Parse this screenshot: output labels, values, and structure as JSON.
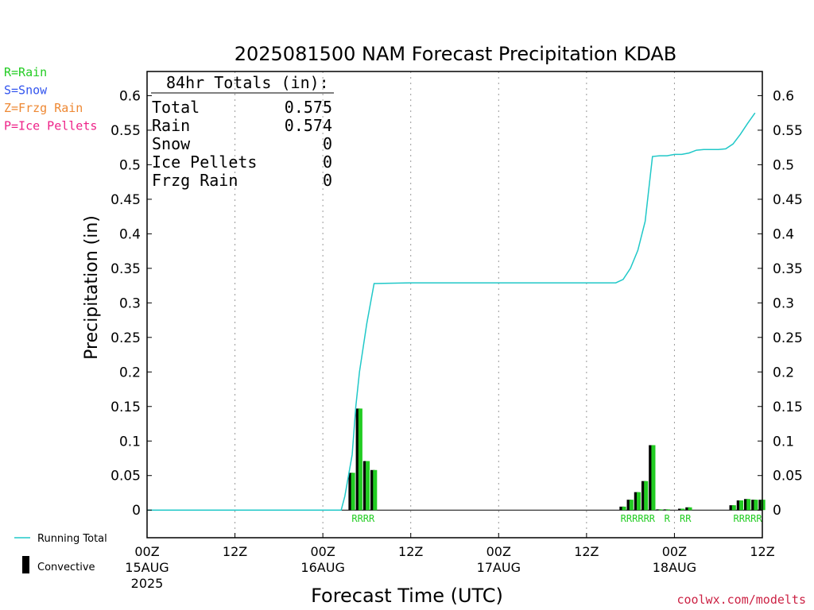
{
  "chart_data": {
    "type": "bar",
    "title": "2025081500 NAM Forecast Precipitation KDAB",
    "xlabel": "Forecast Time (UTC)",
    "ylabel": "Precipitation  (in)",
    "ylim": [
      -0.04,
      0.635
    ],
    "xlim_hours": [
      0,
      84
    ],
    "yticks": [
      0,
      0.05,
      0.1,
      0.15,
      0.2,
      0.25,
      0.3,
      0.35,
      0.4,
      0.45,
      0.5,
      0.55,
      0.6
    ],
    "ytick_labels": [
      "0",
      "0.05",
      "0.1",
      "0.15",
      "0.2",
      "0.25",
      "0.3",
      "0.35",
      "0.4",
      "0.45",
      "0.5",
      "0.55",
      "0.6"
    ],
    "xticks": [
      {
        "hour": 0,
        "label": "00Z",
        "sub": "15AUG",
        "sub2": "2025"
      },
      {
        "hour": 12,
        "label": "12Z",
        "sub": "",
        "sub2": ""
      },
      {
        "hour": 24,
        "label": "00Z",
        "sub": "16AUG",
        "sub2": ""
      },
      {
        "hour": 36,
        "label": "12Z",
        "sub": "",
        "sub2": ""
      },
      {
        "hour": 48,
        "label": "00Z",
        "sub": "17AUG",
        "sub2": ""
      },
      {
        "hour": 60,
        "label": "12Z",
        "sub": "",
        "sub2": ""
      },
      {
        "hour": 72,
        "label": "00Z",
        "sub": "18AUG",
        "sub2": ""
      },
      {
        "hour": 84,
        "label": "12Z",
        "sub": "",
        "sub2": ""
      }
    ],
    "grid": "vertical-dotted",
    "bars": [
      {
        "hour": 28,
        "value": 0.054,
        "type": "R"
      },
      {
        "hour": 29,
        "value": 0.147,
        "type": "R"
      },
      {
        "hour": 30,
        "value": 0.071,
        "type": "R"
      },
      {
        "hour": 31,
        "value": 0.058,
        "type": "R"
      },
      {
        "hour": 65,
        "value": 0.005,
        "type": "R"
      },
      {
        "hour": 66,
        "value": 0.015,
        "type": "R"
      },
      {
        "hour": 67,
        "value": 0.026,
        "type": "R"
      },
      {
        "hour": 68,
        "value": 0.042,
        "type": "R"
      },
      {
        "hour": 69,
        "value": 0.094,
        "type": "R"
      },
      {
        "hour": 70,
        "value": 0.001,
        "type": ""
      },
      {
        "hour": 71,
        "value": 0.001,
        "type": "R"
      },
      {
        "hour": 73,
        "value": 0.002,
        "type": "R"
      },
      {
        "hour": 74,
        "value": 0.004,
        "type": "R"
      },
      {
        "hour": 80,
        "value": 0.007,
        "type": "R"
      },
      {
        "hour": 81,
        "value": 0.014,
        "type": "R"
      },
      {
        "hour": 82,
        "value": 0.016,
        "type": "R"
      },
      {
        "hour": 83,
        "value": 0.015,
        "type": "R"
      },
      {
        "hour": 84,
        "value": 0.015,
        "type": "R"
      }
    ],
    "rain_label_groups": [
      {
        "hour_start": 27.5,
        "hour_end": 31.5,
        "text": "RRRR"
      },
      {
        "hour_start": 64.5,
        "hour_end": 69.5,
        "text": "RRRRRR"
      },
      {
        "hour_start": 70.5,
        "hour_end": 71.5,
        "text": "R"
      },
      {
        "hour_start": 72.5,
        "hour_end": 74.5,
        "text": "RR"
      },
      {
        "hour_start": 79.5,
        "hour_end": 84.5,
        "text": "RRRRR"
      }
    ],
    "series": [
      {
        "name": "Running Total",
        "color": "#20c8c8",
        "points": [
          [
            0,
            0
          ],
          [
            24,
            0
          ],
          [
            26.5,
            0
          ],
          [
            27,
            0.02
          ],
          [
            27.5,
            0.05
          ],
          [
            28,
            0.08
          ],
          [
            28.5,
            0.15
          ],
          [
            29,
            0.2
          ],
          [
            30,
            0.27
          ],
          [
            31,
            0.328
          ],
          [
            36,
            0.329
          ],
          [
            48,
            0.329
          ],
          [
            60,
            0.329
          ],
          [
            64,
            0.329
          ],
          [
            65,
            0.334
          ],
          [
            66,
            0.35
          ],
          [
            67,
            0.376
          ],
          [
            68,
            0.418
          ],
          [
            69,
            0.512
          ],
          [
            70,
            0.513
          ],
          [
            71,
            0.513
          ],
          [
            72,
            0.515
          ],
          [
            73,
            0.515
          ],
          [
            74,
            0.517
          ],
          [
            75,
            0.521
          ],
          [
            76,
            0.522
          ],
          [
            77,
            0.522
          ],
          [
            78,
            0.522
          ],
          [
            79,
            0.523
          ],
          [
            80,
            0.53
          ],
          [
            81,
            0.544
          ],
          [
            82,
            0.56
          ],
          [
            83,
            0.575
          ]
        ]
      }
    ],
    "totals": {
      "header": "84hr Totals (in):",
      "rows": [
        {
          "label": "Total",
          "value": "0.575"
        },
        {
          "label": "Rain",
          "value": "0.574"
        },
        {
          "label": "Snow",
          "value": "0"
        },
        {
          "label": "Ice Pellets",
          "value": "0"
        },
        {
          "label": "Frzg Rain",
          "value": "0"
        }
      ]
    },
    "type_legend": [
      {
        "text": "R=Rain",
        "color": "#22cc22"
      },
      {
        "text": "S=Snow",
        "color": "#3355ee"
      },
      {
        "text": "Z=Frzg Rain",
        "color": "#ee8833"
      },
      {
        "text": "P=Ice Pellets",
        "color": "#ee2288"
      }
    ],
    "bottom_legend": [
      {
        "key": "running_total",
        "text": "Running Total",
        "color": "#20c8c8"
      },
      {
        "key": "convective",
        "text": "Convective",
        "color": "#000000"
      }
    ],
    "colors": {
      "rain_bar": "#22cc22",
      "convective_bar": "#000000",
      "axis": "#000000",
      "grid": "#999999"
    }
  },
  "footer": {
    "site": "coolwx.com/modelts",
    "color": "#cc2244"
  }
}
